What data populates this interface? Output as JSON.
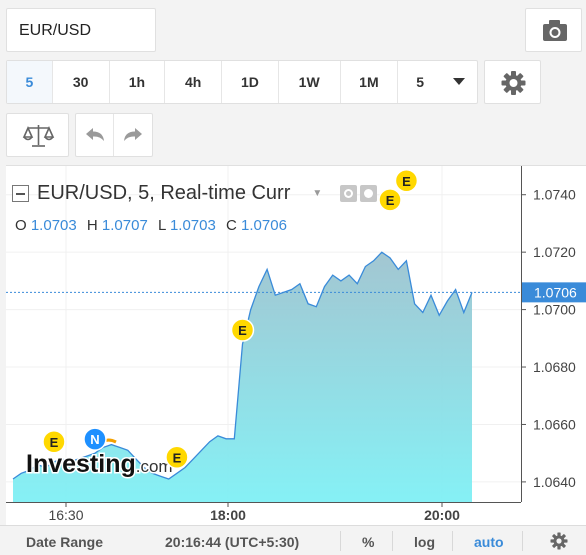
{
  "symbol": "EUR/USD",
  "intervals": [
    {
      "label": "5",
      "active": true
    },
    {
      "label": "30",
      "active": false
    },
    {
      "label": "1h",
      "active": false
    },
    {
      "label": "4h",
      "active": false
    },
    {
      "label": "1D",
      "active": false
    },
    {
      "label": "1W",
      "active": false
    },
    {
      "label": "1M",
      "active": false
    },
    {
      "label": "5",
      "active": false
    }
  ],
  "legend": {
    "title": "EUR/USD, 5, Real-time Curr",
    "o_label": "O",
    "o_value": "1.0703",
    "h_label": "H",
    "h_value": "1.0707",
    "l_label": "L",
    "l_value": "1.0703",
    "c_label": "C",
    "c_value": "1.0706"
  },
  "watermark": "Investing.com",
  "chart_data": {
    "type": "area",
    "y_ticks": [
      "1.0740",
      "1.0720",
      "1.0700",
      "1.0680",
      "1.0660",
      "1.0640"
    ],
    "x_ticks": [
      "16:30",
      "18:00",
      "20:00"
    ],
    "last_price": "1.0706",
    "ylim": [
      1.0633,
      1.075
    ],
    "series": [
      {
        "values": [
          1.0641,
          1.0643,
          1.0644,
          1.0646,
          1.0645,
          1.0647,
          1.0648,
          1.0647,
          1.0648,
          1.0649,
          1.065,
          1.0652,
          1.0653,
          1.0652,
          1.0651,
          1.0648,
          1.0645,
          1.0643,
          1.0642,
          1.0641,
          1.0643,
          1.0645,
          1.0648,
          1.0651,
          1.0654,
          1.0656,
          1.0655,
          1.0655,
          1.0688,
          1.07,
          1.0708,
          1.0714,
          1.0705,
          1.0706,
          1.0707,
          1.0709,
          1.0702,
          1.0701,
          1.0708,
          1.0712,
          1.071,
          1.0712,
          1.0709,
          1.0715,
          1.0717,
          1.072,
          1.0718,
          1.0714,
          1.0717,
          1.0702,
          1.0699,
          1.0705,
          1.0698,
          1.0703,
          1.0707,
          1.0699,
          1.0706
        ]
      }
    ],
    "markers": [
      {
        "label": "E",
        "color": "#ffd800",
        "index": 5
      },
      {
        "label": "N",
        "color": "#1e90ff",
        "index": 10
      },
      {
        "label": "E",
        "color": "#ffd800",
        "index": 20
      },
      {
        "label": "E",
        "color": "#ffd800",
        "index": 28
      },
      {
        "label": "E",
        "color": "#ffd800",
        "index": 46
      },
      {
        "label": "E",
        "color": "#ffd800",
        "index": 48
      }
    ]
  },
  "bottom": {
    "date_range": "Date Range",
    "time": "20:16:44 (UTC+5:30)",
    "percent": "%",
    "log": "log",
    "auto": "auto"
  },
  "colors": {
    "accent": "#3a8bd9",
    "area_top": "#9ec3cf",
    "area_bottom": "#7ff0f5",
    "line": "#3a8bd9"
  }
}
